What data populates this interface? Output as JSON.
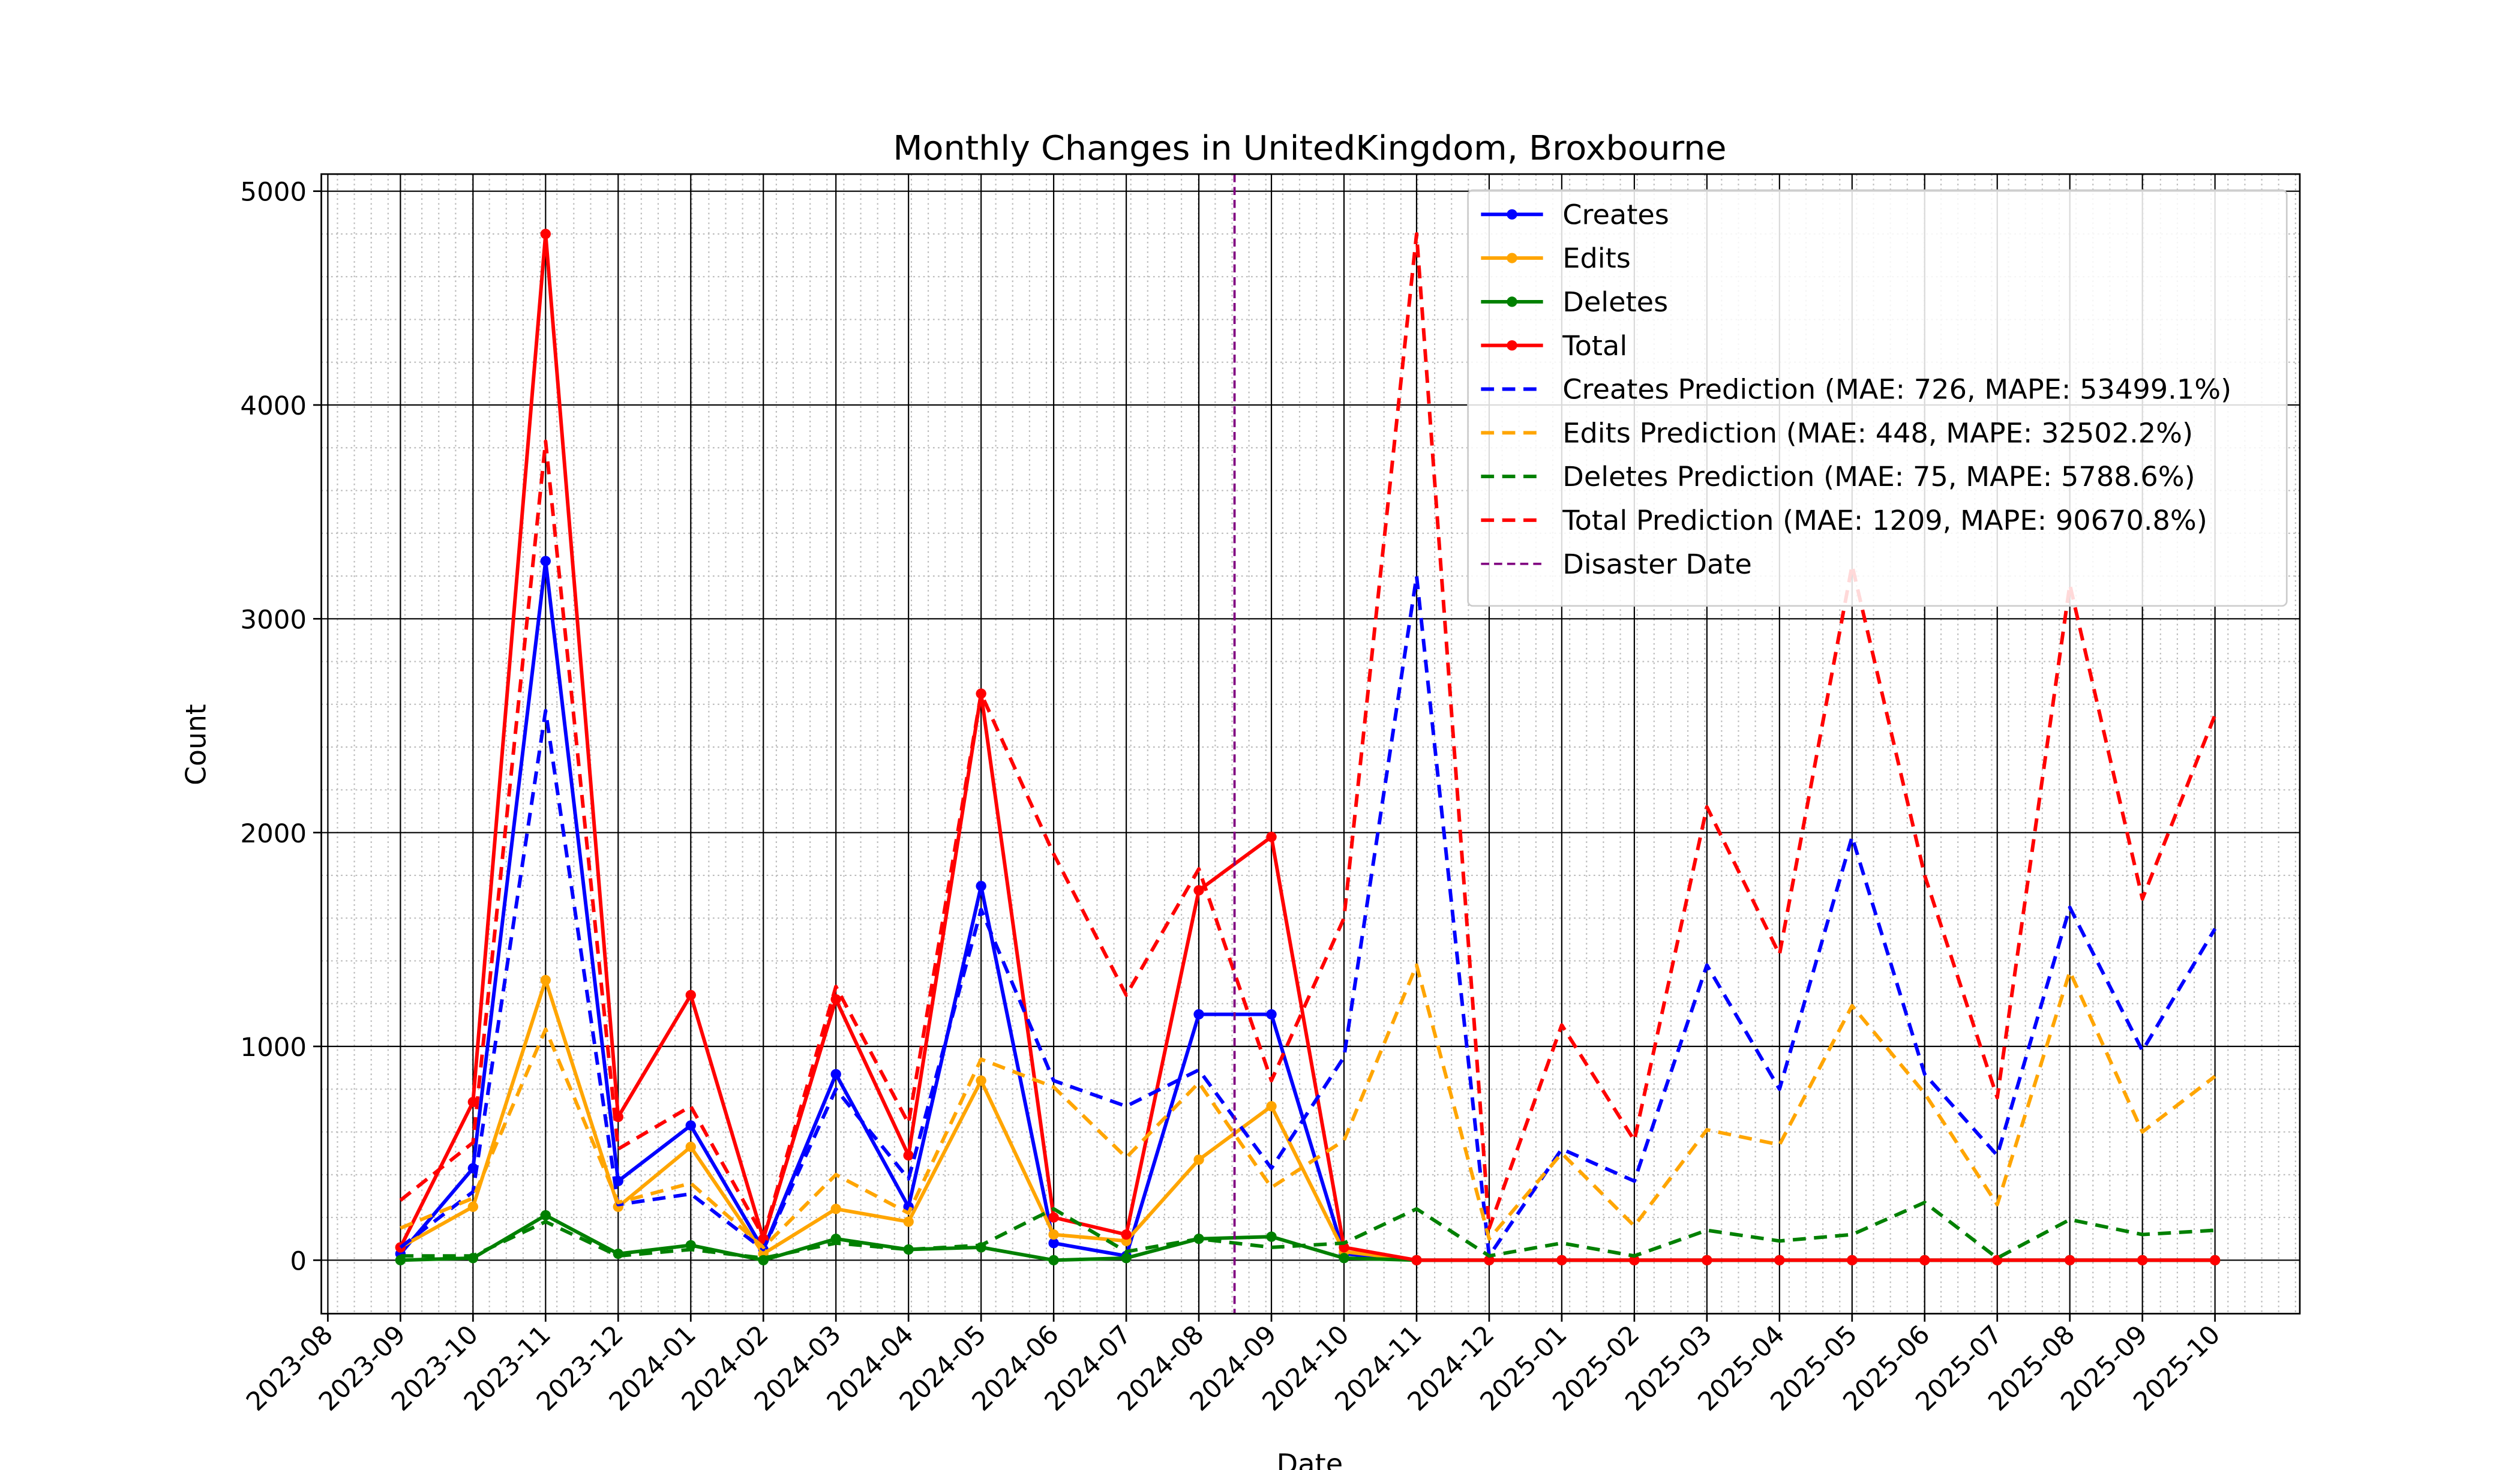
{
  "chart_data": {
    "type": "line",
    "title": "Monthly Changes in UnitedKingdom, Broxbourne",
    "xlabel": "Date",
    "ylabel": "Count",
    "x": [
      "2023-09",
      "2023-10",
      "2023-11",
      "2023-12",
      "2024-01",
      "2024-02",
      "2024-03",
      "2024-04",
      "2024-05",
      "2024-06",
      "2024-07",
      "2024-08",
      "2024-09",
      "2024-10",
      "2024-11",
      "2024-12",
      "2025-01",
      "2025-02",
      "2025-03",
      "2025-04",
      "2025-05",
      "2025-06",
      "2025-07",
      "2025-08",
      "2025-09",
      "2025-10"
    ],
    "xticks": [
      "2023-08",
      "2023-09",
      "2023-10",
      "2023-11",
      "2023-12",
      "2024-01",
      "2024-02",
      "2024-03",
      "2024-04",
      "2024-05",
      "2024-06",
      "2024-07",
      "2024-08",
      "2024-09",
      "2024-10",
      "2024-11",
      "2024-12",
      "2025-01",
      "2025-02",
      "2025-03",
      "2025-04",
      "2025-05",
      "2025-06",
      "2025-07",
      "2025-08",
      "2025-09",
      "2025-10"
    ],
    "ylim": [
      -250,
      5080
    ],
    "yticks": [
      0,
      1000,
      2000,
      3000,
      4000,
      5000
    ],
    "grid": true,
    "minor_grid": true,
    "legend": "upper right",
    "series": [
      {
        "name": "Creates",
        "color": "blue",
        "dashed": false,
        "markers": true,
        "values": [
          30,
          430,
          3270,
          370,
          630,
          50,
          870,
          250,
          1750,
          80,
          20,
          1150,
          1150,
          30,
          0,
          0,
          0,
          0,
          0,
          0,
          0,
          0,
          0,
          0,
          0,
          0
        ]
      },
      {
        "name": "Edits",
        "color": "orange",
        "dashed": false,
        "markers": true,
        "values": [
          60,
          250,
          1310,
          250,
          530,
          30,
          240,
          180,
          840,
          120,
          90,
          470,
          720,
          40,
          0,
          0,
          0,
          0,
          0,
          0,
          0,
          0,
          0,
          0,
          0,
          0
        ]
      },
      {
        "name": "Deletes",
        "color": "green",
        "dashed": false,
        "markers": true,
        "values": [
          0,
          10,
          210,
          30,
          70,
          0,
          100,
          50,
          60,
          0,
          10,
          100,
          110,
          10,
          0,
          0,
          0,
          0,
          0,
          0,
          0,
          0,
          0,
          0,
          0,
          0
        ]
      },
      {
        "name": "Total",
        "color": "red",
        "dashed": false,
        "markers": true,
        "values": [
          60,
          740,
          4800,
          670,
          1240,
          100,
          1220,
          490,
          2650,
          200,
          120,
          1730,
          1980,
          60,
          0,
          0,
          0,
          0,
          0,
          0,
          0,
          0,
          0,
          0,
          0,
          0
        ]
      },
      {
        "name": "Creates Prediction (MAE: 726, MAPE: 53499.1%)",
        "color": "blue",
        "dashed": true,
        "markers": false,
        "values": [
          60,
          320,
          2570,
          260,
          310,
          50,
          800,
          380,
          1640,
          840,
          720,
          890,
          430,
          950,
          3200,
          20,
          520,
          370,
          1380,
          800,
          1980,
          870,
          490,
          1650,
          980,
          1550
        ]
      },
      {
        "name": "Edits Prediction (MAE: 448, MAPE: 32502.2%)",
        "color": "orange",
        "dashed": true,
        "markers": false,
        "values": [
          150,
          290,
          1080,
          270,
          360,
          60,
          400,
          220,
          940,
          810,
          480,
          830,
          340,
          560,
          1380,
          100,
          500,
          160,
          610,
          540,
          1190,
          780,
          260,
          1350,
          600,
          860
        ]
      },
      {
        "name": "Deletes Prediction (MAE: 75, MAPE: 5788.6%)",
        "color": "green",
        "dashed": true,
        "markers": false,
        "values": [
          20,
          20,
          180,
          20,
          50,
          10,
          80,
          50,
          70,
          240,
          40,
          100,
          60,
          80,
          240,
          20,
          80,
          20,
          140,
          90,
          120,
          270,
          10,
          190,
          120,
          140
        ]
      },
      {
        "name": "Total Prediction (MAE: 1209, MAPE: 90670.8%)",
        "color": "red",
        "dashed": true,
        "markers": false,
        "values": [
          280,
          550,
          3830,
          520,
          720,
          110,
          1280,
          640,
          2650,
          1900,
          1240,
          1830,
          840,
          1600,
          4800,
          150,
          1100,
          560,
          2120,
          1430,
          3250,
          1800,
          760,
          3160,
          1690,
          2550
        ]
      }
    ],
    "disaster": {
      "label": "Disaster Date",
      "x": "2024-08-16",
      "color": "purple"
    }
  }
}
